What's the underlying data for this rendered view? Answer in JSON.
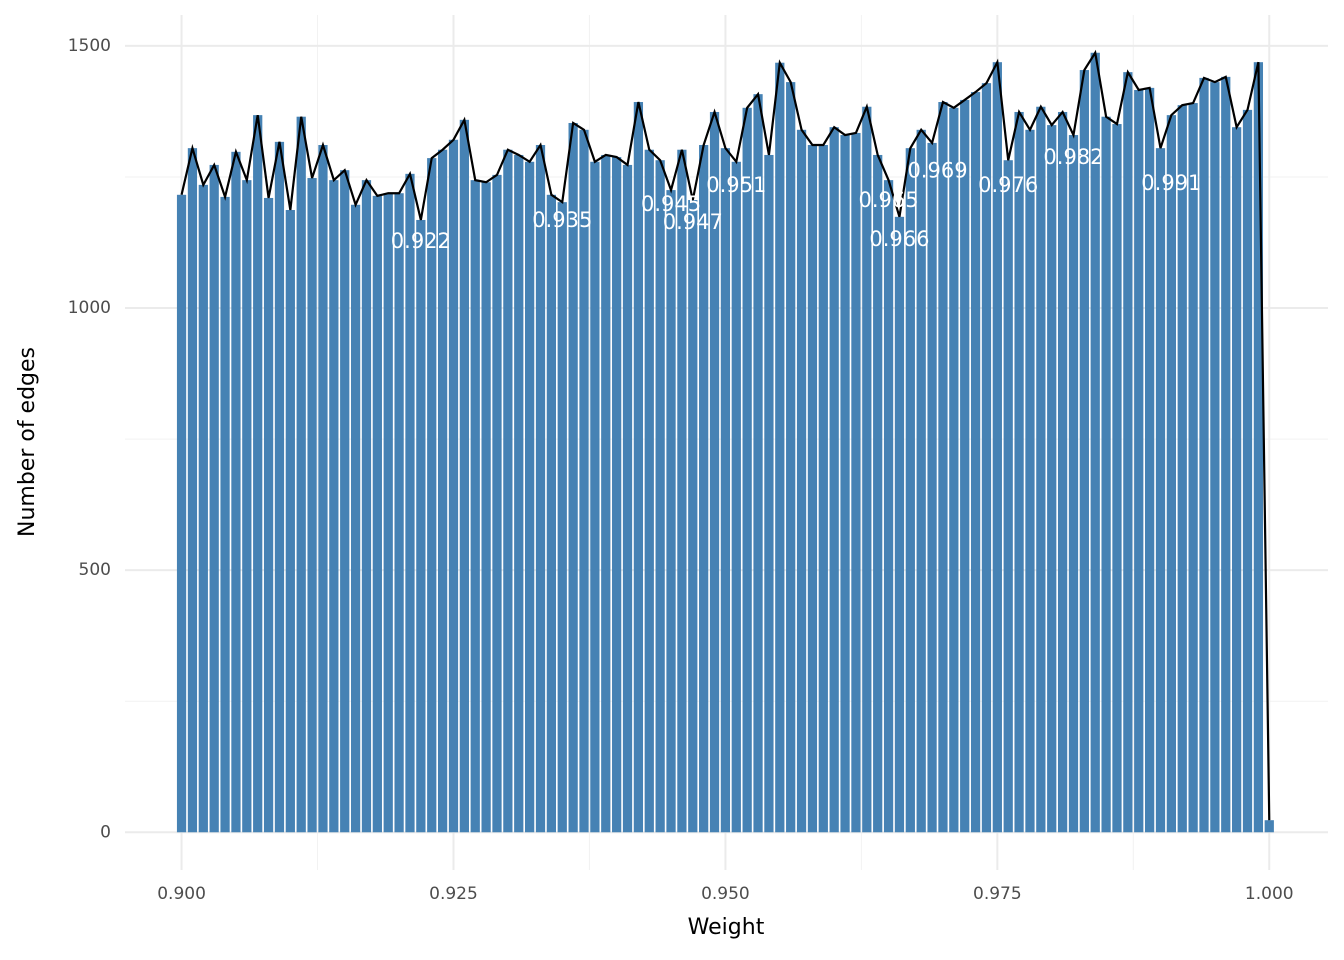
{
  "chart_data": {
    "type": "bar",
    "x_label": "Weight",
    "y_label": "Number of edges",
    "color": "#4682b4",
    "line_color": "#000000",
    "x": [
      0.9,
      0.901,
      0.902,
      0.903,
      0.904,
      0.905,
      0.906,
      0.907,
      0.908,
      0.909,
      0.91,
      0.911,
      0.912,
      0.913,
      0.914,
      0.915,
      0.916,
      0.917,
      0.918,
      0.919,
      0.92,
      0.921,
      0.922,
      0.923,
      0.924,
      0.925,
      0.926,
      0.927,
      0.928,
      0.929,
      0.93,
      0.931,
      0.932,
      0.933,
      0.934,
      0.935,
      0.936,
      0.937,
      0.938,
      0.939,
      0.94,
      0.941,
      0.942,
      0.943,
      0.944,
      0.945,
      0.946,
      0.947,
      0.948,
      0.949,
      0.95,
      0.951,
      0.952,
      0.953,
      0.954,
      0.955,
      0.956,
      0.957,
      0.958,
      0.959,
      0.96,
      0.961,
      0.962,
      0.963,
      0.964,
      0.965,
      0.966,
      0.967,
      0.968,
      0.969,
      0.97,
      0.971,
      0.972,
      0.973,
      0.974,
      0.975,
      0.976,
      0.977,
      0.978,
      0.979,
      0.98,
      0.981,
      0.982,
      0.983,
      0.984,
      0.985,
      0.986,
      0.987,
      0.988,
      0.989,
      0.99,
      0.991,
      0.992,
      0.993,
      0.994,
      0.995,
      0.996,
      0.997,
      0.998,
      0.999,
      1.0
    ],
    "values": [
      1216,
      1305,
      1235,
      1273,
      1212,
      1298,
      1244,
      1368,
      1210,
      1317,
      1187,
      1365,
      1248,
      1311,
      1244,
      1263,
      1197,
      1244,
      1214,
      1219,
      1219,
      1256,
      1168,
      1286,
      1302,
      1321,
      1359,
      1244,
      1240,
      1254,
      1302,
      1292,
      1279,
      1311,
      1216,
      1202,
      1353,
      1340,
      1279,
      1292,
      1288,
      1273,
      1393,
      1302,
      1282,
      1225,
      1302,
      1206,
      1311,
      1374,
      1305,
      1279,
      1382,
      1408,
      1292,
      1468,
      1431,
      1340,
      1311,
      1311,
      1345,
      1330,
      1334,
      1384,
      1292,
      1244,
      1174,
      1305,
      1340,
      1315,
      1393,
      1382,
      1397,
      1412,
      1429,
      1469,
      1282,
      1374,
      1340,
      1384,
      1349,
      1374,
      1330,
      1454,
      1487,
      1365,
      1351,
      1450,
      1416,
      1420,
      1305,
      1368,
      1387,
      1391,
      1439,
      1431,
      1441,
      1345,
      1378,
      1469,
      23
    ],
    "bar_width": 0.00085,
    "xlim": [
      0.8948,
      1.0054
    ],
    "ylim": [
      -72,
      1559
    ],
    "xticks": [
      {
        "value": 0.9,
        "label": "0.900"
      },
      {
        "value": 0.925,
        "label": "0.925"
      },
      {
        "value": 0.95,
        "label": "0.950"
      },
      {
        "value": 0.975,
        "label": "0.975"
      },
      {
        "value": 1.0,
        "label": "1.000"
      }
    ],
    "yticks": [
      0,
      500,
      1000,
      1500
    ],
    "x_minor_grid": [
      0.9125,
      0.9375,
      0.9625,
      0.9875
    ],
    "y_minor_grid": [
      250,
      750,
      1250
    ],
    "grid": true,
    "annotations": [
      {
        "text": "0.922",
        "x": 0.922,
        "y": 1126
      },
      {
        "text": "0.935",
        "x": 0.935,
        "y": 1166
      },
      {
        "text": "0.945",
        "x": 0.945,
        "y": 1197
      },
      {
        "text": "0.947",
        "x": 0.947,
        "y": 1162
      },
      {
        "text": "0.951",
        "x": 0.951,
        "y": 1233
      },
      {
        "text": "0.965",
        "x": 0.965,
        "y": 1204
      },
      {
        "text": "0.966",
        "x": 0.966,
        "y": 1130
      },
      {
        "text": "0.969",
        "x": 0.9695,
        "y": 1260
      },
      {
        "text": "0.976",
        "x": 0.976,
        "y": 1233
      },
      {
        "text": "0.982",
        "x": 0.982,
        "y": 1286
      },
      {
        "text": "0.991",
        "x": 0.991,
        "y": 1237
      }
    ]
  }
}
